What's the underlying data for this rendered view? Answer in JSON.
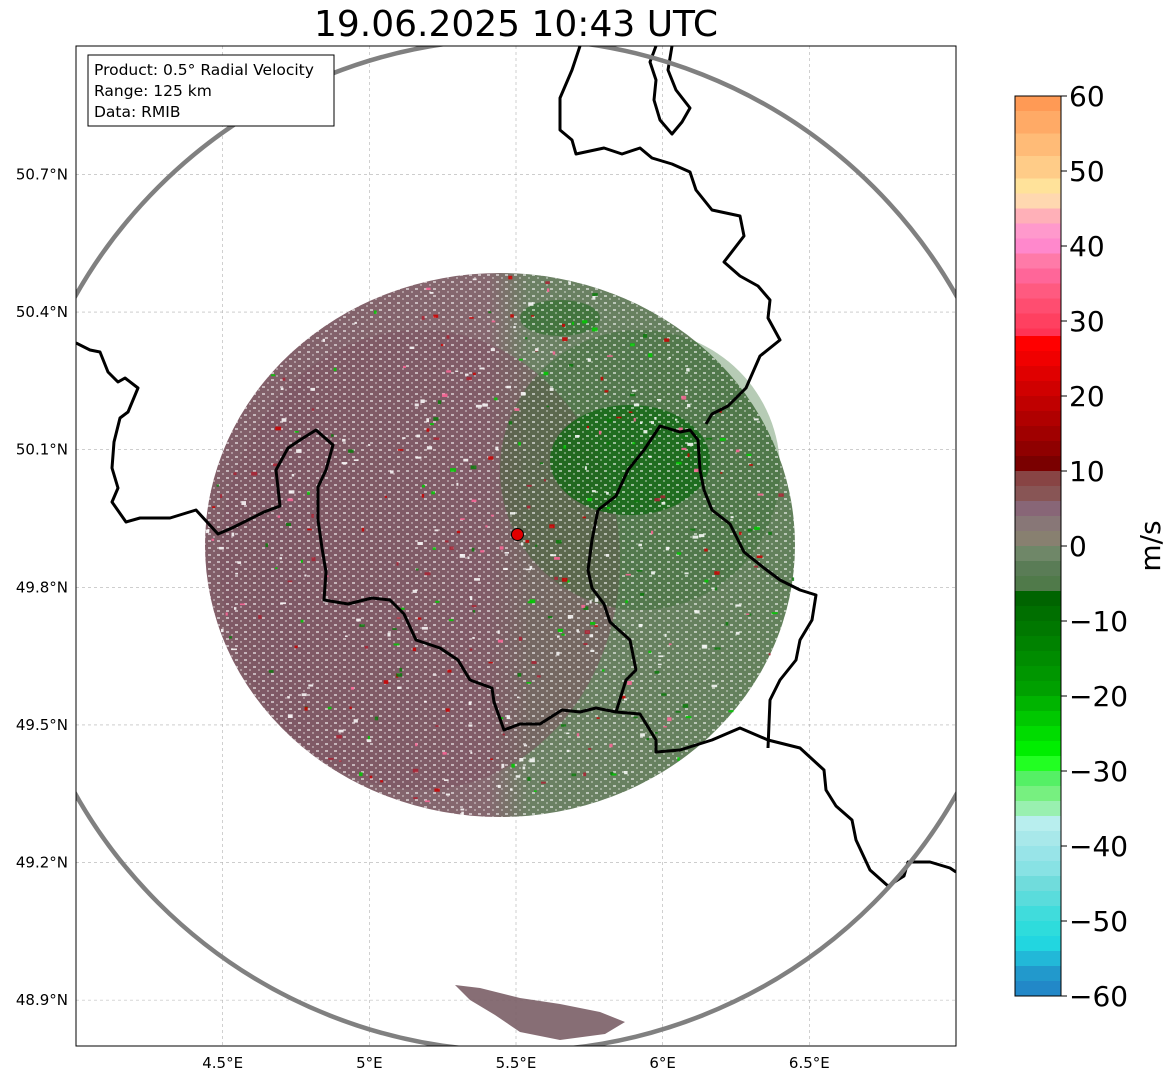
{
  "title": "19.06.2025 10:43 UTC",
  "info_box": {
    "product": "Product: 0.5° Radial Velocity",
    "range": "Range: 125 km",
    "data": "Data: RMIB"
  },
  "map": {
    "lon_range": [
      4.0,
      7.0
    ],
    "lat_range": [
      48.8,
      50.98
    ],
    "lon_ticks": [
      {
        "value": 4.5,
        "label": "4.5°E"
      },
      {
        "value": 5.0,
        "label": "5°E"
      },
      {
        "value": 5.5,
        "label": "5.5°E"
      },
      {
        "value": 6.0,
        "label": "6°E"
      },
      {
        "value": 6.5,
        "label": "6.5°E"
      }
    ],
    "lat_ticks": [
      {
        "value": 48.9,
        "label": "48.9°N"
      },
      {
        "value": 49.2,
        "label": "49.2°N"
      },
      {
        "value": 49.5,
        "label": "49.5°N"
      },
      {
        "value": 49.8,
        "label": "49.8°N"
      },
      {
        "value": 50.1,
        "label": "50.1°N"
      },
      {
        "value": 50.4,
        "label": "50.4°N"
      },
      {
        "value": 50.7,
        "label": "50.7°N"
      }
    ],
    "radar_site": {
      "lon": 5.505,
      "lat": 49.915,
      "color": "#e00000"
    },
    "grid": true,
    "range_ring_color": "#808080"
  },
  "colorbar": {
    "label": "m/s",
    "range": [
      -60,
      60
    ],
    "ticks": [
      {
        "value": 60,
        "label": "60"
      },
      {
        "value": 50,
        "label": "50"
      },
      {
        "value": 40,
        "label": "40"
      },
      {
        "value": 30,
        "label": "30"
      },
      {
        "value": 20,
        "label": "20"
      },
      {
        "value": 10,
        "label": "10"
      },
      {
        "value": 0,
        "label": "0"
      },
      {
        "value": -10,
        "label": "−10"
      },
      {
        "value": -20,
        "label": "−20"
      },
      {
        "value": -30,
        "label": "−30"
      },
      {
        "value": -40,
        "label": "−40"
      },
      {
        "value": -50,
        "label": "−50"
      },
      {
        "value": -60,
        "label": "−60"
      }
    ],
    "stops": [
      {
        "from": 58,
        "to": 60,
        "color": "#ff9a55"
      },
      {
        "from": 55,
        "to": 58,
        "color": "#ffaa66"
      },
      {
        "from": 52,
        "to": 55,
        "color": "#ffbb77"
      },
      {
        "from": 49,
        "to": 52,
        "color": "#ffcc88"
      },
      {
        "from": 47,
        "to": 49,
        "color": "#ffe29a"
      },
      {
        "from": 45,
        "to": 47,
        "color": "#ffd8b0"
      },
      {
        "from": 43,
        "to": 45,
        "color": "#ffb0b8"
      },
      {
        "from": 41,
        "to": 43,
        "color": "#ff99cc"
      },
      {
        "from": 39,
        "to": 41,
        "color": "#ff88cc"
      },
      {
        "from": 37,
        "to": 39,
        "color": "#ff7aa8"
      },
      {
        "from": 35,
        "to": 37,
        "color": "#ff6699"
      },
      {
        "from": 33,
        "to": 35,
        "color": "#ff5a80"
      },
      {
        "from": 31,
        "to": 33,
        "color": "#ff4d70"
      },
      {
        "from": 29,
        "to": 31,
        "color": "#ff4060"
      },
      {
        "from": 28,
        "to": 29,
        "color": "#ff3355"
      },
      {
        "from": 26,
        "to": 28,
        "color": "#ff0000"
      },
      {
        "from": 24,
        "to": 26,
        "color": "#f00000"
      },
      {
        "from": 22,
        "to": 24,
        "color": "#e00000"
      },
      {
        "from": 20,
        "to": 22,
        "color": "#d00000"
      },
      {
        "from": 18,
        "to": 20,
        "color": "#c00000"
      },
      {
        "from": 16,
        "to": 18,
        "color": "#b00000"
      },
      {
        "from": 14,
        "to": 16,
        "color": "#a00000"
      },
      {
        "from": 12,
        "to": 14,
        "color": "#8f0000"
      },
      {
        "from": 10,
        "to": 12,
        "color": "#7a0000"
      },
      {
        "from": 8,
        "to": 10,
        "color": "#884444"
      },
      {
        "from": 6,
        "to": 8,
        "color": "#885555"
      },
      {
        "from": 4,
        "to": 6,
        "color": "#886677"
      },
      {
        "from": 2,
        "to": 4,
        "color": "#887777"
      },
      {
        "from": 0,
        "to": 2,
        "color": "#888070"
      },
      {
        "from": -2,
        "to": 0,
        "color": "#6f8768"
      },
      {
        "from": -4,
        "to": -2,
        "color": "#5a7c56"
      },
      {
        "from": -6,
        "to": -4,
        "color": "#507a4a"
      },
      {
        "from": -8,
        "to": -6,
        "color": "#006400"
      },
      {
        "from": -10,
        "to": -8,
        "color": "#006f00"
      },
      {
        "from": -12,
        "to": -10,
        "color": "#007800"
      },
      {
        "from": -14,
        "to": -12,
        "color": "#008200"
      },
      {
        "from": -16,
        "to": -14,
        "color": "#008c00"
      },
      {
        "from": -18,
        "to": -16,
        "color": "#009600"
      },
      {
        "from": -20,
        "to": -18,
        "color": "#00a000"
      },
      {
        "from": -22,
        "to": -20,
        "color": "#00b400"
      },
      {
        "from": -24,
        "to": -22,
        "color": "#00c800"
      },
      {
        "from": -26,
        "to": -24,
        "color": "#00dc00"
      },
      {
        "from": -28,
        "to": -26,
        "color": "#00ee00"
      },
      {
        "from": -30,
        "to": -28,
        "color": "#22ff22"
      },
      {
        "from": -32,
        "to": -30,
        "color": "#55f065"
      },
      {
        "from": -34,
        "to": -32,
        "color": "#77f080"
      },
      {
        "from": -36,
        "to": -34,
        "color": "#99f0b0"
      },
      {
        "from": -38,
        "to": -36,
        "color": "#b8eeee"
      },
      {
        "from": -40,
        "to": -38,
        "color": "#a8e8ea"
      },
      {
        "from": -42,
        "to": -40,
        "color": "#98e4e8"
      },
      {
        "from": -44,
        "to": -42,
        "color": "#88e2e4"
      },
      {
        "from": -46,
        "to": -44,
        "color": "#70dcdc"
      },
      {
        "from": -48,
        "to": -46,
        "color": "#5adcdc"
      },
      {
        "from": -50,
        "to": -48,
        "color": "#40dcdc"
      },
      {
        "from": -52,
        "to": -50,
        "color": "#2edcdc"
      },
      {
        "from": -54,
        "to": -52,
        "color": "#22d6e0"
      },
      {
        "from": -56,
        "to": -54,
        "color": "#22b8d8"
      },
      {
        "from": -58,
        "to": -56,
        "color": "#2299cc"
      },
      {
        "from": -60,
        "to": -58,
        "color": "#2288c8"
      }
    ]
  }
}
